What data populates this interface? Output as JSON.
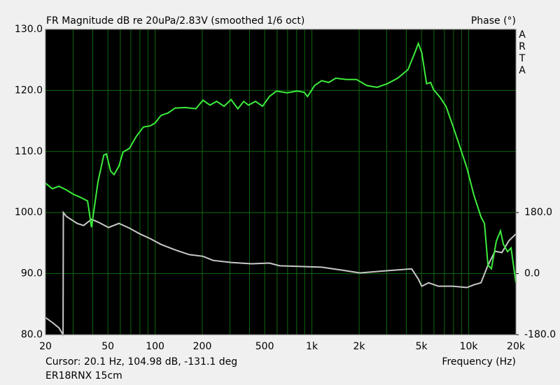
{
  "chart_data": {
    "type": "line",
    "title": "FR Magnitude dB re 20uPa/2.83V (smoothed 1/6 oct)",
    "y2_label": "Phase (°)",
    "watermark": "ARTA",
    "x_label": "Frequency (Hz)",
    "cursor_text": "Cursor: 20.1 Hz, 104.98 dB, -131.1 deg",
    "footer": "ER18RNX 15cm",
    "xscale": "log",
    "xlim": [
      20,
      20000
    ],
    "xticks": [
      20,
      50,
      100,
      200,
      500,
      {
        "value": 1000,
        "label": "1k"
      },
      {
        "value": 2000,
        "label": "2k"
      },
      {
        "value": 5000,
        "label": "5k"
      },
      {
        "value": 10000,
        "label": "10k"
      },
      {
        "value": 20000,
        "label": "20k"
      }
    ],
    "xminorticks": [
      30,
      40,
      60,
      70,
      80,
      90,
      300,
      400,
      600,
      700,
      800,
      900,
      3000,
      4000,
      6000,
      7000,
      8000,
      9000
    ],
    "ylim": [
      80,
      130
    ],
    "yticks": [
      {
        "value": 80,
        "label": "80.0"
      },
      {
        "value": 90,
        "label": "90.0"
      },
      {
        "value": 100,
        "label": "100.0"
      },
      {
        "value": 110,
        "label": "110.0"
      },
      {
        "value": 120,
        "label": "120.0"
      },
      {
        "value": 130,
        "label": "130.0"
      }
    ],
    "y2lim": [
      -180,
      720
    ],
    "y2ticks": [
      {
        "value": -180,
        "label": "-180.0"
      },
      {
        "value": 0,
        "label": "0.0"
      },
      {
        "value": 180,
        "label": "180.0"
      }
    ],
    "grid": true,
    "grid_color": "#0f6a0f",
    "background": "#000000",
    "series": [
      {
        "color": "#3cec3c",
        "x": [
          20,
          22.1,
          24.4,
          27.2,
          30.1,
          33.4,
          37.1,
          39.3,
          43.3,
          47.1,
          48.9,
          52,
          54.7,
          58.8,
          62.4,
          68.6,
          76,
          84.2,
          93.3,
          100.3,
          109,
          121,
          134,
          156,
          182,
          202,
          224,
          247,
          275,
          305,
          337,
          367,
          394,
          437,
          484,
          536,
          594,
          692,
          805,
          892,
          938,
          1040,
          1154,
          1280,
          1420,
          1654,
          1924,
          2239,
          2603,
          3028,
          3523,
          4097,
          4540,
          4770,
          5020,
          5390,
          5720,
          5950,
          6600,
          7160,
          7920,
          8780,
          9740,
          10800,
          11980,
          12600,
          13270,
          13960,
          15000,
          15960,
          16640,
          17700,
          18640,
          20000
        ],
        "values": [
          104.8,
          103.9,
          104.3,
          103.7,
          103.0,
          102.5,
          101.9,
          97.6,
          105.1,
          109.4,
          109.6,
          106.8,
          106.2,
          107.6,
          109.9,
          110.5,
          112.5,
          114.0,
          114.2,
          114.7,
          115.9,
          116.3,
          117.1,
          117.2,
          117.0,
          118.4,
          117.6,
          118.2,
          117.4,
          118.5,
          117.0,
          118.2,
          117.6,
          118.2,
          117.4,
          119.0,
          119.9,
          119.6,
          119.9,
          119.7,
          119.0,
          120.8,
          121.6,
          121.3,
          122.0,
          121.8,
          121.8,
          120.8,
          120.5,
          121.1,
          122.0,
          123.4,
          126.2,
          127.7,
          126.2,
          121.1,
          121.3,
          120.2,
          118.8,
          117.4,
          114.2,
          110.8,
          107.3,
          102.8,
          99.3,
          98.2,
          91.4,
          90.8,
          95.3,
          97.0,
          94.8,
          93.6,
          94.2,
          88.5
        ]
      },
      {
        "color": "#c8c8c8",
        "axis": "y2",
        "x": [
          20,
          22.1,
          24.4,
          25.9,
          26,
          27.2,
          31.8,
          35,
          39.3,
          43.3,
          50.5,
          58.8,
          68.6,
          80,
          93.3,
          109,
          134,
          165,
          202,
          234,
          305,
          412,
          536,
          623,
          849,
          1154,
          1571,
          2021,
          2884,
          4329,
          4770,
          5020,
          5550,
          6400,
          7920,
          9740,
          10800,
          11980,
          13270,
          14720,
          16290,
          18040,
          20000
        ],
        "values": [
          -129.6,
          -144,
          -160,
          -180,
          180,
          168.7,
          148,
          142,
          160,
          152,
          136,
          148,
          134,
          117,
          103,
          86,
          70,
          56,
          51,
          39,
          33,
          29,
          31,
          23,
          21,
          19,
          10,
          2,
          8,
          14,
          -16,
          -37,
          -27,
          -37,
          -37,
          -41,
          -33,
          -27,
          25,
          66,
          62,
          97,
          117
        ]
      }
    ]
  }
}
